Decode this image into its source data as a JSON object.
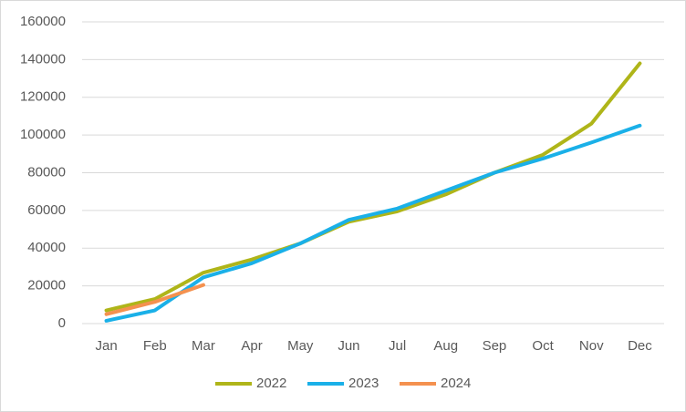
{
  "chart_data": {
    "type": "line",
    "categories": [
      "Jan",
      "Feb",
      "Mar",
      "Apr",
      "May",
      "Jun",
      "Jul",
      "Aug",
      "Sep",
      "Oct",
      "Nov",
      "Dec"
    ],
    "series": [
      {
        "name": "2022",
        "color": "#afb519",
        "values": [
          7000,
          13000,
          27000,
          34000,
          42500,
          54000,
          59500,
          68500,
          80000,
          89500,
          106000,
          138000
        ]
      },
      {
        "name": "2023",
        "color": "#1ab0e8",
        "values": [
          1500,
          7000,
          24500,
          32000,
          42500,
          55000,
          61000,
          70500,
          80000,
          87500,
          96000,
          105000
        ]
      },
      {
        "name": "2024",
        "color": "#f4914f",
        "values": [
          5000,
          11500,
          20500,
          null,
          null,
          null,
          null,
          null,
          null,
          null,
          null,
          null
        ]
      }
    ],
    "ylim": [
      0,
      160000
    ],
    "yticks": [
      0,
      20000,
      40000,
      60000,
      80000,
      100000,
      120000,
      140000,
      160000
    ],
    "grid": true,
    "legend": "bottom"
  }
}
